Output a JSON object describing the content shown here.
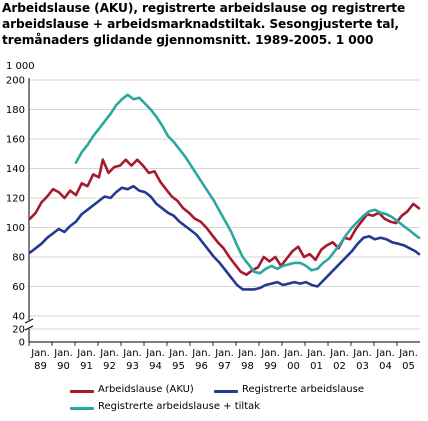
{
  "chart_data": {
    "type": "line",
    "title": "Arbeidslause (AKU), registrerte arbeidslause og registrerte arbeidslause + arbeidsmarknadstiltak. Sesongjusterte tal, tremånaders glidande gjennomsnitt. 1989-2005. 1 000",
    "ylabel": "1 000",
    "ylim": [
      0,
      200
    ],
    "yticks": [
      0,
      20,
      40,
      60,
      80,
      100,
      120,
      140,
      160,
      180,
      200
    ],
    "axis_break": "40-0",
    "xlim": [
      "1989-01",
      "2005-12"
    ],
    "xtick_labels": [
      {
        "top": "Jan.",
        "bottom": "89"
      },
      {
        "top": "Jan.",
        "bottom": "90"
      },
      {
        "top": "Jan.",
        "bottom": "91"
      },
      {
        "top": "Jan.",
        "bottom": "92"
      },
      {
        "top": "Jan.",
        "bottom": "93"
      },
      {
        "top": "Jan.",
        "bottom": "94"
      },
      {
        "top": "Jan.",
        "bottom": "95"
      },
      {
        "top": "Jan.",
        "bottom": "96"
      },
      {
        "top": "Jan.",
        "bottom": "97"
      },
      {
        "top": "Jan.",
        "bottom": "98"
      },
      {
        "top": "Jan.",
        "bottom": "99"
      },
      {
        "top": "Jan.",
        "bottom": "00"
      },
      {
        "top": "Jan.",
        "bottom": "01"
      },
      {
        "top": "Jan.",
        "bottom": "02"
      },
      {
        "top": "Jan.",
        "bottom": "03"
      },
      {
        "top": "Jan.",
        "bottom": "04"
      },
      {
        "top": "Jan.",
        "bottom": "05"
      }
    ],
    "grid": true,
    "legend_placement": "bottom",
    "series": [
      {
        "name": "Arbeidslause (AKU)",
        "color": "#a6192e",
        "points": [
          [
            "1989-01",
            106
          ],
          [
            "1989-04",
            110
          ],
          [
            "1989-07",
            117
          ],
          [
            "1989-10",
            121
          ],
          [
            "1990-01",
            126
          ],
          [
            "1990-04",
            124
          ],
          [
            "1990-07",
            120
          ],
          [
            "1990-10",
            125
          ],
          [
            "1991-01",
            122
          ],
          [
            "1991-04",
            130
          ],
          [
            "1991-07",
            128
          ],
          [
            "1991-10",
            136
          ],
          [
            "1992-01",
            134
          ],
          [
            "1992-03",
            146
          ],
          [
            "1992-06",
            137
          ],
          [
            "1992-09",
            141
          ],
          [
            "1992-12",
            142
          ],
          [
            "1993-03",
            146
          ],
          [
            "1993-06",
            142
          ],
          [
            "1993-09",
            146
          ],
          [
            "1993-12",
            142
          ],
          [
            "1994-03",
            137
          ],
          [
            "1994-06",
            138
          ],
          [
            "1994-09",
            131
          ],
          [
            "1994-12",
            126
          ],
          [
            "1995-03",
            121
          ],
          [
            "1995-06",
            118
          ],
          [
            "1995-09",
            113
          ],
          [
            "1995-12",
            110
          ],
          [
            "1996-03",
            106
          ],
          [
            "1996-06",
            104
          ],
          [
            "1996-09",
            100
          ],
          [
            "1996-12",
            95
          ],
          [
            "1997-03",
            90
          ],
          [
            "1997-06",
            86
          ],
          [
            "1997-09",
            80
          ],
          [
            "1997-12",
            75
          ],
          [
            "1998-03",
            70
          ],
          [
            "1998-06",
            68
          ],
          [
            "1998-09",
            71
          ],
          [
            "1998-12",
            73
          ],
          [
            "1999-03",
            80
          ],
          [
            "1999-06",
            77
          ],
          [
            "1999-09",
            80
          ],
          [
            "1999-12",
            74
          ],
          [
            "2000-03",
            79
          ],
          [
            "2000-06",
            84
          ],
          [
            "2000-09",
            87
          ],
          [
            "2000-12",
            80
          ],
          [
            "2001-03",
            82
          ],
          [
            "2001-06",
            78
          ],
          [
            "2001-09",
            85
          ],
          [
            "2001-12",
            88
          ],
          [
            "2002-03",
            90
          ],
          [
            "2002-06",
            86
          ],
          [
            "2002-09",
            93
          ],
          [
            "2002-12",
            92
          ],
          [
            "2003-03",
            99
          ],
          [
            "2003-06",
            104
          ],
          [
            "2003-09",
            109
          ],
          [
            "2003-12",
            108
          ],
          [
            "2004-03",
            110
          ],
          [
            "2004-06",
            106
          ],
          [
            "2004-09",
            104
          ],
          [
            "2004-12",
            103
          ],
          [
            "2005-03",
            108
          ],
          [
            "2005-06",
            111
          ],
          [
            "2005-09",
            116
          ],
          [
            "2005-12",
            113
          ]
        ]
      },
      {
        "name": "Registrerte arbeidslause",
        "color": "#223a8f",
        "points": [
          [
            "1989-01",
            83
          ],
          [
            "1989-04",
            86
          ],
          [
            "1989-07",
            89
          ],
          [
            "1989-10",
            93
          ],
          [
            "1990-01",
            96
          ],
          [
            "1990-04",
            99
          ],
          [
            "1990-07",
            97
          ],
          [
            "1990-10",
            101
          ],
          [
            "1991-01",
            104
          ],
          [
            "1991-04",
            109
          ],
          [
            "1991-07",
            112
          ],
          [
            "1991-10",
            115
          ],
          [
            "1992-01",
            118
          ],
          [
            "1992-04",
            121
          ],
          [
            "1992-07",
            120
          ],
          [
            "1992-10",
            124
          ],
          [
            "1993-01",
            127
          ],
          [
            "1993-04",
            126
          ],
          [
            "1993-07",
            128
          ],
          [
            "1993-10",
            125
          ],
          [
            "1994-01",
            124
          ],
          [
            "1994-04",
            121
          ],
          [
            "1994-07",
            116
          ],
          [
            "1994-10",
            113
          ],
          [
            "1995-01",
            110
          ],
          [
            "1995-04",
            108
          ],
          [
            "1995-07",
            104
          ],
          [
            "1995-10",
            101
          ],
          [
            "1996-01",
            98
          ],
          [
            "1996-04",
            95
          ],
          [
            "1996-07",
            90
          ],
          [
            "1996-10",
            85
          ],
          [
            "1997-01",
            80
          ],
          [
            "1997-04",
            76
          ],
          [
            "1997-07",
            71
          ],
          [
            "1997-10",
            66
          ],
          [
            "1998-01",
            61
          ],
          [
            "1998-04",
            58
          ],
          [
            "1998-07",
            58
          ],
          [
            "1998-10",
            58
          ],
          [
            "1999-01",
            59
          ],
          [
            "1999-04",
            61
          ],
          [
            "1999-07",
            62
          ],
          [
            "1999-10",
            63
          ],
          [
            "2000-01",
            61
          ],
          [
            "2000-04",
            62
          ],
          [
            "2000-07",
            63
          ],
          [
            "2000-10",
            62
          ],
          [
            "2001-01",
            63
          ],
          [
            "2001-04",
            61
          ],
          [
            "2001-07",
            60
          ],
          [
            "2001-10",
            64
          ],
          [
            "2002-01",
            68
          ],
          [
            "2002-04",
            72
          ],
          [
            "2002-07",
            76
          ],
          [
            "2002-10",
            80
          ],
          [
            "2003-01",
            84
          ],
          [
            "2003-04",
            89
          ],
          [
            "2003-07",
            93
          ],
          [
            "2003-10",
            94
          ],
          [
            "2004-01",
            92
          ],
          [
            "2004-04",
            93
          ],
          [
            "2004-07",
            92
          ],
          [
            "2004-10",
            90
          ],
          [
            "2005-01",
            89
          ],
          [
            "2005-04",
            88
          ],
          [
            "2005-07",
            86
          ],
          [
            "2005-10",
            84
          ],
          [
            "2005-12",
            82
          ]
        ]
      },
      {
        "name": "Registrerte arbeidslause + tiltak",
        "color": "#2aa8a0",
        "points": [
          [
            "1991-01",
            144
          ],
          [
            "1991-04",
            151
          ],
          [
            "1991-07",
            156
          ],
          [
            "1991-10",
            162
          ],
          [
            "1992-01",
            167
          ],
          [
            "1992-04",
            172
          ],
          [
            "1992-07",
            177
          ],
          [
            "1992-10",
            183
          ],
          [
            "1993-01",
            187
          ],
          [
            "1993-04",
            190
          ],
          [
            "1993-07",
            187
          ],
          [
            "1993-10",
            188
          ],
          [
            "1994-01",
            184
          ],
          [
            "1994-04",
            180
          ],
          [
            "1994-07",
            175
          ],
          [
            "1994-10",
            169
          ],
          [
            "1995-01",
            162
          ],
          [
            "1995-04",
            158
          ],
          [
            "1995-07",
            153
          ],
          [
            "1995-10",
            148
          ],
          [
            "1996-01",
            142
          ],
          [
            "1996-04",
            136
          ],
          [
            "1996-07",
            130
          ],
          [
            "1996-10",
            124
          ],
          [
            "1997-01",
            118
          ],
          [
            "1997-04",
            111
          ],
          [
            "1997-07",
            104
          ],
          [
            "1997-10",
            97
          ],
          [
            "1998-01",
            88
          ],
          [
            "1998-04",
            80
          ],
          [
            "1998-07",
            75
          ],
          [
            "1998-10",
            70
          ],
          [
            "1999-01",
            69
          ],
          [
            "1999-04",
            72
          ],
          [
            "1999-07",
            74
          ],
          [
            "1999-10",
            72
          ],
          [
            "2000-01",
            74
          ],
          [
            "2000-04",
            75
          ],
          [
            "2000-07",
            76
          ],
          [
            "2000-10",
            76
          ],
          [
            "2001-01",
            74
          ],
          [
            "2001-04",
            71
          ],
          [
            "2001-07",
            72
          ],
          [
            "2001-10",
            76
          ],
          [
            "2002-01",
            79
          ],
          [
            "2002-04",
            84
          ],
          [
            "2002-07",
            89
          ],
          [
            "2002-10",
            95
          ],
          [
            "2003-01",
            100
          ],
          [
            "2003-04",
            104
          ],
          [
            "2003-07",
            108
          ],
          [
            "2003-10",
            111
          ],
          [
            "2004-01",
            112
          ],
          [
            "2004-04",
            110
          ],
          [
            "2004-07",
            109
          ],
          [
            "2004-10",
            107
          ],
          [
            "2005-01",
            104
          ],
          [
            "2005-04",
            101
          ],
          [
            "2005-07",
            98
          ],
          [
            "2005-10",
            95
          ],
          [
            "2005-12",
            93
          ]
        ]
      }
    ]
  }
}
